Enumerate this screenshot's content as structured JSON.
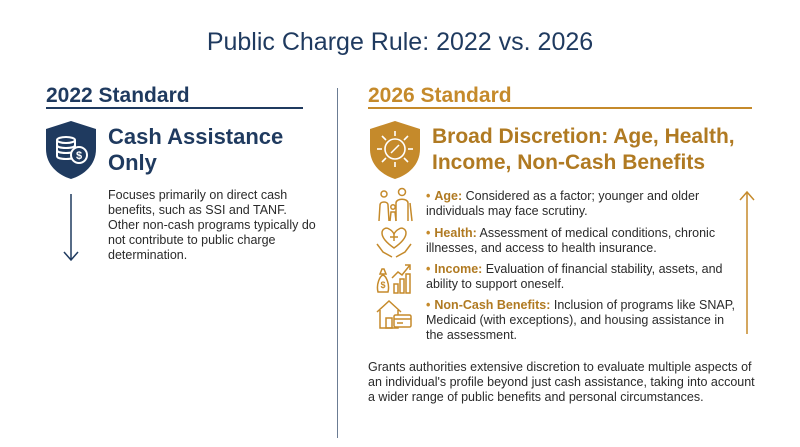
{
  "title": "Public Charge Rule: 2022 vs. 2026",
  "left": {
    "heading": "2022 Standard",
    "category_line1": "Cash Assistance",
    "category_line2": "Only",
    "description": "Focuses primarily on direct cash benefits, such as SSI and TANF. Other non-cash programs typically do not contribute to public charge determination.",
    "icon": "coins-shield-icon",
    "arrow": "down-arrow-icon"
  },
  "right": {
    "heading": "2026 Standard",
    "category_line1": "Broad Discretion: Age, Health,",
    "category_line2": "Income, Non-Cash Benefits",
    "icon": "compass-shield-icon",
    "arrow": "up-arrow-icon",
    "items": [
      {
        "term": "Age:",
        "text": " Considered as a factor; younger and older individuals may face scrutiny.",
        "icon": "family-icon"
      },
      {
        "term": "Health:",
        "text": " Assessment of medical conditions, chronic illnesses, and access to health insurance.",
        "icon": "heart-hands-icon"
      },
      {
        "term": "Income:",
        "text": " Evaluation of financial stability, assets, and ability to support oneself.",
        "icon": "money-growth-icon"
      },
      {
        "term": "Non-Cash Benefits:",
        "text": " Inclusion of programs like SNAP, Medicaid (with exceptions), and housing assistance in the assessment.",
        "icon": "house-card-icon"
      }
    ],
    "summary": "Grants authorities extensive discretion to evaluate multiple aspects of an individual's profile beyond just cash assistance, taking into account a wider range of public benefits and personal circumstances."
  },
  "colors": {
    "navy": "#1f3a5f",
    "gold": "#c58a2b"
  }
}
